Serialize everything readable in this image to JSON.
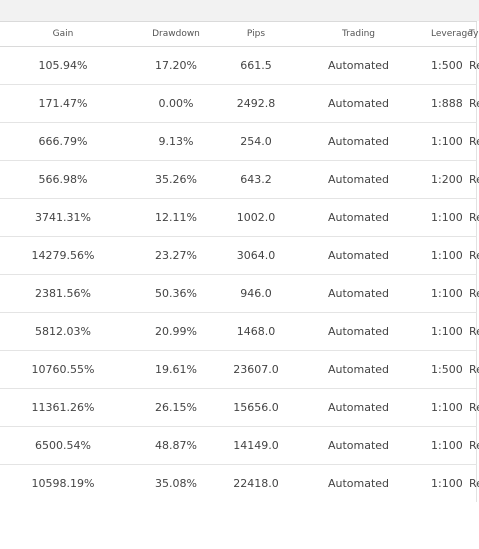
{
  "table": {
    "headers": [
      "Gain",
      "Drawdown",
      "Pips",
      "Trading",
      "Leverage",
      "Type"
    ],
    "rows": [
      {
        "gain": "105.94%",
        "drawdown": "17.20%",
        "pips": "661.5",
        "trading": "Automated",
        "leverage": "1:500",
        "type": "Real"
      },
      {
        "gain": "171.47%",
        "drawdown": "0.00%",
        "pips": "2492.8",
        "trading": "Automated",
        "leverage": "1:888",
        "type": "Real"
      },
      {
        "gain": "666.79%",
        "drawdown": "9.13%",
        "pips": "254.0",
        "trading": "Automated",
        "leverage": "1:100",
        "type": "Real"
      },
      {
        "gain": "566.98%",
        "drawdown": "35.26%",
        "pips": "643.2",
        "trading": "Automated",
        "leverage": "1:200",
        "type": "Real"
      },
      {
        "gain": "3741.31%",
        "drawdown": "12.11%",
        "pips": "1002.0",
        "trading": "Automated",
        "leverage": "1:100",
        "type": "Real"
      },
      {
        "gain": "14279.56%",
        "drawdown": "23.27%",
        "pips": "3064.0",
        "trading": "Automated",
        "leverage": "1:100",
        "type": "Real"
      },
      {
        "gain": "2381.56%",
        "drawdown": "50.36%",
        "pips": "946.0",
        "trading": "Automated",
        "leverage": "1:100",
        "type": "Real"
      },
      {
        "gain": "5812.03%",
        "drawdown": "20.99%",
        "pips": "1468.0",
        "trading": "Automated",
        "leverage": "1:100",
        "type": "Real"
      },
      {
        "gain": "10760.55%",
        "drawdown": "19.61%",
        "pips": "23607.0",
        "trading": "Automated",
        "leverage": "1:500",
        "type": "Real"
      },
      {
        "gain": "11361.26%",
        "drawdown": "26.15%",
        "pips": "15656.0",
        "trading": "Automated",
        "leverage": "1:100",
        "type": "Real"
      },
      {
        "gain": "6500.54%",
        "drawdown": "48.87%",
        "pips": "14149.0",
        "trading": "Automated",
        "leverage": "1:100",
        "type": "Real"
      },
      {
        "gain": "10598.19%",
        "drawdown": "35.08%",
        "pips": "22418.0",
        "trading": "Automated",
        "leverage": "1:100",
        "type": "Real"
      }
    ]
  },
  "colors": {
    "gain": "#2e9e3c",
    "text": "#444444",
    "header_text": "#555555",
    "border": "#e4e4e4"
  }
}
